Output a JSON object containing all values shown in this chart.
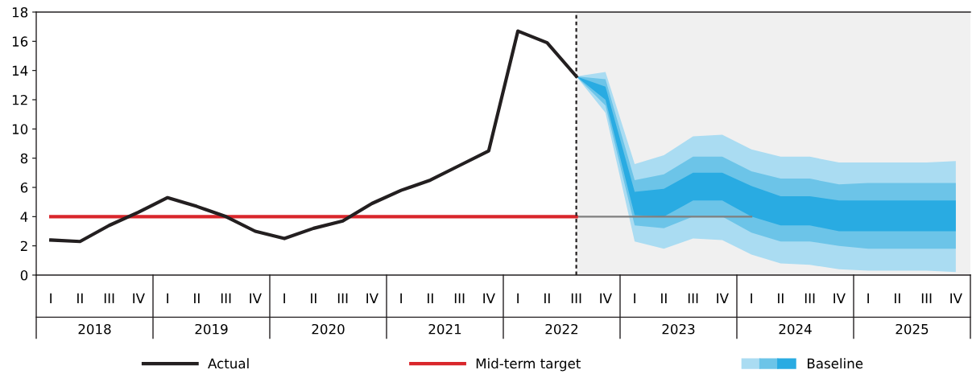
{
  "chart_data": {
    "type": "line",
    "categories": [
      "I",
      "II",
      "III",
      "IV",
      "I",
      "II",
      "III",
      "IV",
      "I",
      "II",
      "III",
      "IV",
      "I",
      "II",
      "III",
      "IV",
      "I",
      "II",
      "III",
      "IV",
      "I",
      "II",
      "III",
      "IV",
      "I",
      "II",
      "III",
      "IV",
      "I",
      "II",
      "III",
      "IV"
    ],
    "ylim": [
      0,
      18
    ],
    "yticks": [
      0,
      2,
      4,
      6,
      8,
      10,
      12,
      14,
      16,
      18
    ],
    "annotations": [
      "2018",
      "2019",
      "2020",
      "2021",
      "2022",
      "2023",
      "2024",
      "2025"
    ],
    "series": [
      {
        "type": "area",
        "color": "#aadcf2",
        "values": [
          null,
          null,
          null,
          null,
          null,
          null,
          null,
          null,
          null,
          null,
          null,
          null,
          null,
          null,
          null,
          null,
          null,
          null,
          null,
          null,
          null,
          null,
          null,
          null,
          null,
          null,
          null,
          null,
          null,
          null,
          null,
          null
        ],
        "lower": [
          null,
          null,
          null,
          null,
          null,
          null,
          null,
          null,
          null,
          null,
          null,
          null,
          null,
          null,
          null,
          null,
          null,
          null,
          13.6,
          11.1,
          2.3,
          1.8,
          2.5,
          2.4,
          1.4,
          0.8,
          0.7,
          0.4,
          0.3,
          0.3,
          0.3,
          0.2
        ],
        "upper": [
          null,
          null,
          null,
          null,
          null,
          null,
          null,
          null,
          null,
          null,
          null,
          null,
          null,
          null,
          null,
          null,
          null,
          null,
          13.6,
          13.9,
          7.6,
          8.2,
          9.5,
          9.6,
          8.6,
          8.1,
          8.1,
          7.7,
          7.7,
          7.7,
          7.7,
          7.8
        ]
      },
      {
        "type": "area",
        "color": "#6cc4e8",
        "values": [
          null,
          null,
          null,
          null,
          null,
          null,
          null,
          null,
          null,
          null,
          null,
          null,
          null,
          null,
          null,
          null,
          null,
          null,
          null,
          null,
          null,
          null,
          null,
          null,
          null,
          null,
          null,
          null,
          null,
          null,
          null,
          null
        ],
        "lower": [
          null,
          null,
          null,
          null,
          null,
          null,
          null,
          null,
          null,
          null,
          null,
          null,
          null,
          null,
          null,
          null,
          null,
          null,
          13.6,
          11.6,
          3.4,
          3.2,
          4.0,
          4.0,
          2.9,
          2.3,
          2.3,
          2.0,
          1.8,
          1.8,
          1.8,
          1.8
        ],
        "upper": [
          null,
          null,
          null,
          null,
          null,
          null,
          null,
          null,
          null,
          null,
          null,
          null,
          null,
          null,
          null,
          null,
          null,
          null,
          13.6,
          13.4,
          6.5,
          6.9,
          8.1,
          8.1,
          7.1,
          6.6,
          6.6,
          6.2,
          6.3,
          6.3,
          6.3,
          6.3
        ]
      },
      {
        "type": "area",
        "name": "Baseline",
        "color": "#29abe2",
        "values": [
          null,
          null,
          null,
          null,
          null,
          null,
          null,
          null,
          null,
          null,
          null,
          null,
          null,
          null,
          null,
          null,
          null,
          null,
          null,
          null,
          null,
          null,
          null,
          null,
          null,
          null,
          null,
          null,
          null,
          null,
          null,
          null
        ],
        "lower": [
          null,
          null,
          null,
          null,
          null,
          null,
          null,
          null,
          null,
          null,
          null,
          null,
          null,
          null,
          null,
          null,
          null,
          null,
          13.6,
          12.0,
          4.1,
          4.0,
          5.1,
          5.1,
          4.0,
          3.4,
          3.4,
          3.0,
          3.0,
          3.0,
          3.0,
          3.0
        ],
        "upper": [
          null,
          null,
          null,
          null,
          null,
          null,
          null,
          null,
          null,
          null,
          null,
          null,
          null,
          null,
          null,
          null,
          null,
          null,
          13.6,
          12.9,
          5.7,
          5.9,
          7.0,
          7.0,
          6.1,
          5.4,
          5.4,
          5.1,
          5.1,
          5.1,
          5.1,
          5.1
        ]
      },
      {
        "color": "#7f7f7f",
        "values": [
          null,
          null,
          null,
          null,
          null,
          null,
          null,
          null,
          null,
          null,
          null,
          null,
          null,
          null,
          null,
          null,
          null,
          null,
          4,
          4,
          4,
          4,
          4,
          4,
          4,
          null,
          null,
          null,
          null,
          null,
          null,
          null
        ]
      },
      {
        "name": "Mid-term target",
        "color": "#d9262b",
        "values": [
          4,
          4,
          4,
          4,
          4,
          4,
          4,
          4,
          4,
          4,
          4,
          4,
          4,
          4,
          4,
          4,
          4,
          4,
          4,
          null,
          null,
          null,
          null,
          null,
          null,
          null,
          null,
          null,
          null,
          null,
          null,
          null
        ]
      },
      {
        "name": "Actual",
        "color": "#231f20",
        "values": [
          2.4,
          2.3,
          3.4,
          4.3,
          5.3,
          4.7,
          4.0,
          3.0,
          2.5,
          3.2,
          3.7,
          4.9,
          5.8,
          6.5,
          7.5,
          8.5,
          16.7,
          15.9,
          13.6,
          null,
          null,
          null,
          null,
          null,
          null,
          null,
          null,
          null,
          null,
          null,
          null,
          null
        ]
      }
    ],
    "legend": "bottom",
    "grid": false,
    "marker": "none",
    "line_style": "solid"
  }
}
